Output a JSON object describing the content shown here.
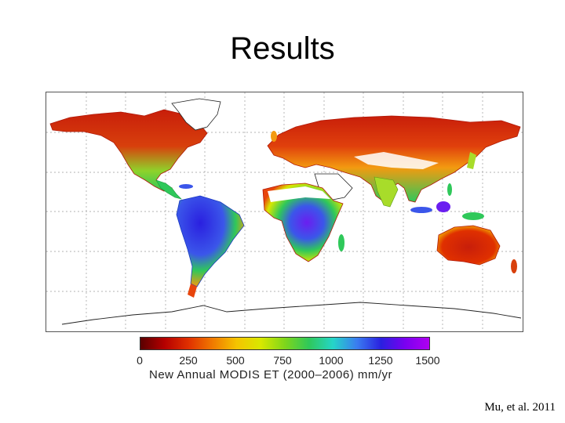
{
  "slide": {
    "title": "Results",
    "citation": "Mu, et al. 2011"
  },
  "legend": {
    "caption": "New Annual MODIS ET (2000–2006) mm/yr",
    "ticks": [
      "0",
      "250",
      "500",
      "750",
      "1000",
      "1250",
      "1500"
    ],
    "colors": [
      "#5a0000",
      "#b50000",
      "#e03000",
      "#f07a00",
      "#f5c400",
      "#d8e800",
      "#7fd61b",
      "#2fc85a",
      "#25d5c8",
      "#3a7cf0",
      "#2a20e0",
      "#7a00f0",
      "#b000f0"
    ]
  },
  "map": {
    "palette": {
      "low": "#c81e0a",
      "dry": "#e8450c",
      "mid": "#f39a10",
      "moist": "#a8dc2a",
      "wet": "#2fc85a",
      "very_wet": "#3b56ea",
      "max": "#6a1ef0",
      "outline": "#222222",
      "grid": "#9a9a9a"
    }
  }
}
